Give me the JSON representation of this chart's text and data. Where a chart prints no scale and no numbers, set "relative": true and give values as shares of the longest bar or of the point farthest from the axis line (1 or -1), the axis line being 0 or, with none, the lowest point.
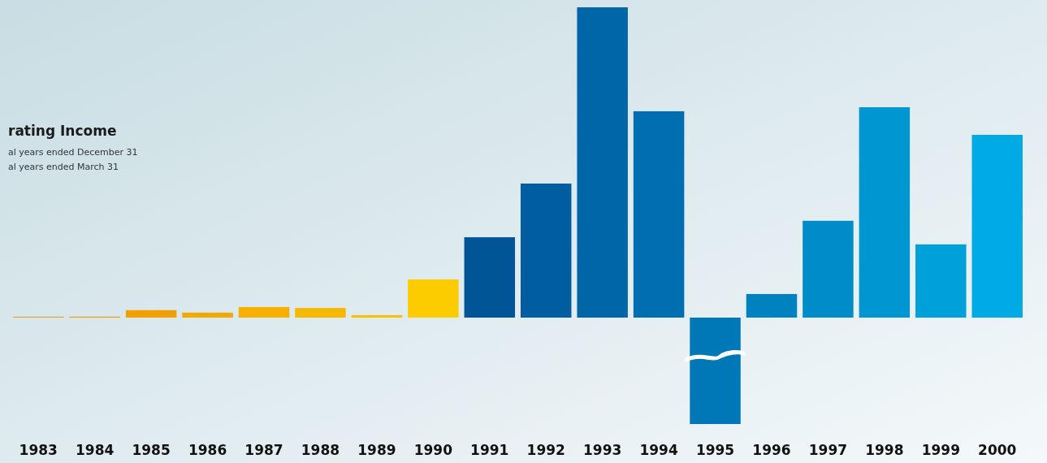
{
  "chart_data": {
    "type": "bar",
    "relative": true,
    "title": "rating Income",
    "annotations": [
      "al years ended December 31",
      "al years ended March 31"
    ],
    "categories": [
      "1983",
      "1984",
      "1985",
      "1986",
      "1987",
      "1988",
      "1989",
      "1990",
      "1991",
      "1992",
      "1993",
      "1994",
      "1995",
      "1996",
      "1997",
      "1998",
      "1999",
      "2000"
    ],
    "values": [
      0.003,
      0.003,
      0.024,
      0.016,
      0.034,
      0.031,
      0.008,
      0.123,
      0.259,
      0.432,
      1,
      0.665,
      -0.343,
      0.076,
      0.312,
      0.678,
      0.236,
      0.589
    ],
    "colors": [
      "#e0a030",
      "#ee9a00",
      "#f0a000",
      "#f2a800",
      "#f5b000",
      "#f7b800",
      "#f9c000",
      "#fccc00",
      "#005596",
      "#005ea0",
      "#0066a8",
      "#006eb0",
      "#0078b8",
      "#0082c0",
      "#008cc8",
      "#0096d2",
      "#00a0da",
      "#00aae4"
    ]
  }
}
